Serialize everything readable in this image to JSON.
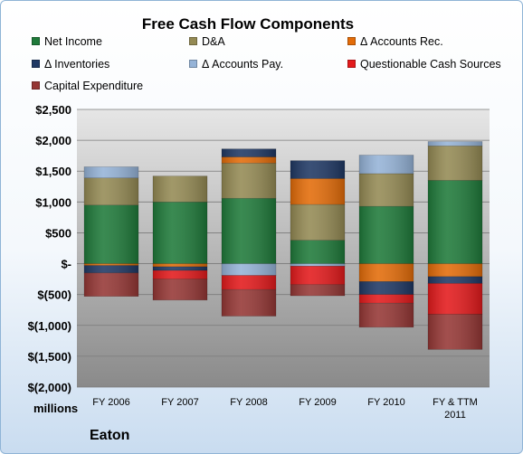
{
  "chart_data": {
    "type": "bar",
    "stacked": true,
    "title": "Free Cash Flow Components",
    "ylabel": "millions",
    "caption": "Eaton",
    "categories": [
      "FY 2006",
      "FY 2007",
      "FY 2008",
      "FY 2009",
      "FY 2010",
      "FY & TTM 2011"
    ],
    "ylim": [
      -2000,
      2500
    ],
    "yticks": [
      2500,
      2000,
      1500,
      1000,
      500,
      0,
      -500,
      -1000,
      -1500,
      -2000
    ],
    "ytick_labels": [
      "$2,500",
      "$2,000",
      "$1,500",
      "$1,000",
      "$500",
      "$-",
      "$(500)",
      "$(1,000)",
      "$(1,500)",
      "$(2,000)"
    ],
    "grid": true,
    "legend_position": "top",
    "series": [
      {
        "name": "Net Income",
        "color": "#1f7a3a",
        "values": [
          950,
          1000,
          1060,
          380,
          930,
          1350
        ]
      },
      {
        "name": "D&A",
        "color": "#948a54",
        "values": [
          440,
          420,
          570,
          580,
          530,
          560
        ]
      },
      {
        "name": "Δ Accounts Rec.",
        "color": "#e36c09",
        "values": [
          -30,
          -50,
          100,
          420,
          -290,
          -210
        ]
      },
      {
        "name": "Δ Inventories",
        "color": "#1f3864",
        "values": [
          -120,
          -60,
          130,
          290,
          -210,
          -110
        ]
      },
      {
        "name": "Δ Accounts Pay.",
        "color": "#95b3d7",
        "values": [
          180,
          0,
          -190,
          -40,
          300,
          70
        ]
      },
      {
        "name": "Questionable Cash Sources",
        "color": "#e31a1c",
        "values": [
          0,
          -140,
          -230,
          -300,
          -140,
          -500
        ]
      },
      {
        "name": "Capital Expenditure",
        "color": "#953735",
        "values": [
          -380,
          -340,
          -430,
          -180,
          -390,
          -570
        ]
      }
    ]
  }
}
